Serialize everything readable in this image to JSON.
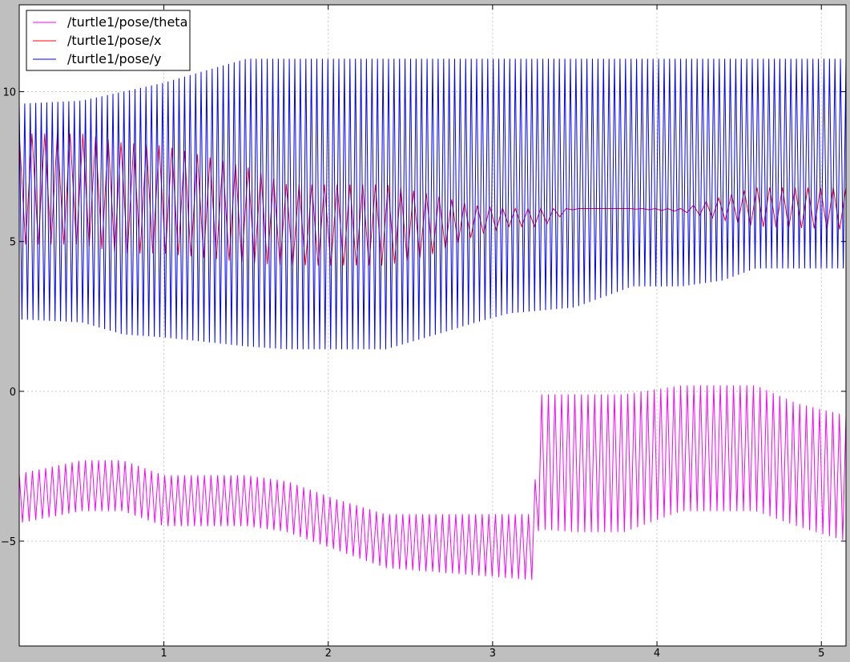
{
  "chart_data": {
    "type": "line",
    "title": "",
    "xlabel": "",
    "ylabel": "",
    "xlim": [
      0.12,
      5.15
    ],
    "ylim": [
      -8.5,
      12.9
    ],
    "xticks": [
      1,
      2,
      3,
      4,
      5
    ],
    "yticks": [
      -5,
      0,
      5,
      10
    ],
    "xtick_labels": [
      "1",
      "2",
      "3",
      "4",
      "5"
    ],
    "ytick_labels": [
      "−5",
      "0",
      "5",
      "10"
    ],
    "grid": true,
    "legend_position": "upper-left",
    "series": [
      {
        "name": "/turtle1/pose/theta",
        "color": "#ff00ff",
        "baseline": [
          [
            0.12,
            -2.75
          ],
          [
            0.5,
            -2.3
          ],
          [
            0.75,
            -2.3
          ],
          [
            1.0,
            -2.8
          ],
          [
            1.5,
            -2.8
          ],
          [
            1.75,
            -3.0
          ],
          [
            2.05,
            -3.6
          ],
          [
            2.35,
            -4.1
          ],
          [
            3.25,
            -4.1
          ],
          [
            3.28,
            -0.1
          ],
          [
            3.5,
            -0.1
          ],
          [
            3.8,
            -0.1
          ],
          [
            4.15,
            0.2
          ],
          [
            4.6,
            0.2
          ],
          [
            4.85,
            -0.4
          ],
          [
            5.15,
            -0.8
          ]
        ],
        "envelope": [
          [
            0.12,
            -4.4
          ],
          [
            0.5,
            -4.0
          ],
          [
            0.75,
            -4.0
          ],
          [
            1.0,
            -4.5
          ],
          [
            1.5,
            -4.5
          ],
          [
            1.75,
            -4.7
          ],
          [
            2.05,
            -5.3
          ],
          [
            2.35,
            -5.9
          ],
          [
            3.25,
            -6.3
          ],
          [
            3.28,
            -4.6
          ],
          [
            3.5,
            -4.7
          ],
          [
            3.8,
            -4.7
          ],
          [
            4.15,
            -4.0
          ],
          [
            4.6,
            -4.0
          ],
          [
            4.85,
            -4.5
          ],
          [
            5.15,
            -5.0
          ]
        ],
        "osc_segments": 250
      },
      {
        "name": "/turtle1/pose/x",
        "color": "#ff0000",
        "baseline": [
          [
            0.12,
            8.6
          ],
          [
            0.5,
            8.6
          ],
          [
            0.75,
            8.3
          ],
          [
            1.0,
            8.2
          ],
          [
            1.5,
            7.5
          ],
          [
            1.75,
            6.9
          ],
          [
            2.05,
            6.9
          ],
          [
            2.35,
            6.9
          ],
          [
            2.6,
            6.6
          ],
          [
            2.9,
            6.2
          ],
          [
            3.1,
            6.1
          ],
          [
            3.3,
            6.1
          ],
          [
            3.5,
            6.1
          ],
          [
            3.8,
            6.1
          ],
          [
            4.15,
            6.1
          ],
          [
            4.6,
            6.8
          ],
          [
            5.15,
            6.8
          ]
        ],
        "envelope": [
          [
            0.12,
            4.9
          ],
          [
            0.5,
            4.9
          ],
          [
            0.75,
            4.6
          ],
          [
            1.0,
            4.6
          ],
          [
            1.5,
            4.3
          ],
          [
            1.75,
            4.2
          ],
          [
            2.05,
            4.2
          ],
          [
            2.35,
            4.2
          ],
          [
            2.6,
            4.5
          ],
          [
            2.9,
            5.2
          ],
          [
            3.1,
            5.5
          ],
          [
            3.3,
            5.5
          ],
          [
            3.5,
            6.1
          ],
          [
            3.8,
            6.1
          ],
          [
            4.15,
            6.0
          ],
          [
            4.6,
            5.5
          ],
          [
            5.15,
            5.4
          ]
        ],
        "osc_segments": 130
      },
      {
        "name": "/turtle1/pose/y",
        "color": "#0000ff",
        "baseline": [
          [
            0.12,
            9.6
          ],
          [
            0.5,
            9.7
          ],
          [
            0.75,
            10.0
          ],
          [
            1.0,
            10.3
          ],
          [
            1.5,
            11.1
          ],
          [
            2.0,
            11.1
          ],
          [
            3.0,
            11.1
          ],
          [
            4.0,
            11.1
          ],
          [
            5.15,
            11.1
          ]
        ],
        "envelope": [
          [
            0.12,
            2.4
          ],
          [
            0.5,
            2.3
          ],
          [
            0.75,
            1.9
          ],
          [
            1.0,
            1.8
          ],
          [
            1.5,
            1.5
          ],
          [
            1.75,
            1.4
          ],
          [
            2.35,
            1.4
          ],
          [
            2.6,
            1.8
          ],
          [
            2.9,
            2.3
          ],
          [
            3.1,
            2.6
          ],
          [
            3.5,
            2.8
          ],
          [
            3.75,
            3.3
          ],
          [
            3.85,
            3.5
          ],
          [
            4.15,
            3.5
          ],
          [
            4.4,
            3.7
          ],
          [
            4.6,
            4.1
          ],
          [
            5.15,
            4.1
          ]
        ],
        "osc_segments": 300
      }
    ]
  }
}
